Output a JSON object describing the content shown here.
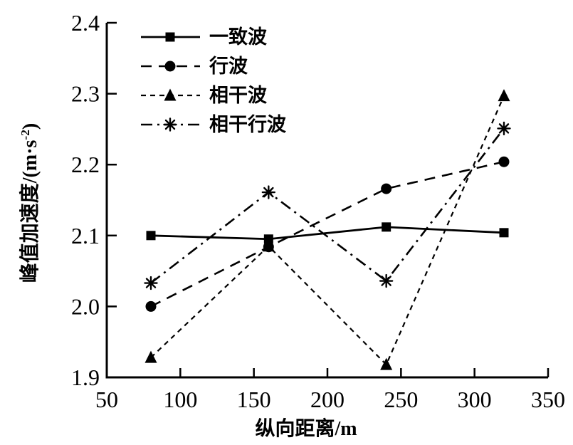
{
  "figure": {
    "background_color": "#ffffff",
    "ink_color": "#000000"
  },
  "chart_data": {
    "type": "line",
    "title": "",
    "xlabel": "纵向距离/m",
    "ylabel": "峰值加速度/(m·s⁻²)",
    "ylabel_parts": {
      "prefix": "峰值加速度/(m·s",
      "sup": "-2",
      "suffix": ")"
    },
    "xlim": [
      50,
      350
    ],
    "ylim": [
      1.9,
      2.4
    ],
    "x_ticks": [
      50,
      100,
      150,
      200,
      250,
      300,
      350
    ],
    "x_tick_labels": [
      "50",
      "100",
      "150",
      "200",
      "250",
      "300",
      "350"
    ],
    "y_ticks": [
      1.9,
      2.0,
      2.1,
      2.2,
      2.3,
      2.4
    ],
    "y_tick_labels": [
      "1.9",
      "2.0",
      "2.1",
      "2.2",
      "2.3",
      "2.4"
    ],
    "grid": false,
    "legend_position": "top-left inside",
    "x": [
      80,
      160,
      240,
      320
    ],
    "series": [
      {
        "name": "一致波",
        "marker": "square",
        "line_style": "solid",
        "values": [
          2.1,
          2.095,
          2.112,
          2.104
        ]
      },
      {
        "name": "行波",
        "marker": "circle",
        "line_style": "long-dash",
        "values": [
          2.0,
          2.084,
          2.166,
          2.204
        ]
      },
      {
        "name": "相干波",
        "marker": "triangle",
        "line_style": "short-dash",
        "values": [
          1.928,
          2.085,
          1.918,
          2.297
        ]
      },
      {
        "name": "相干行波",
        "marker": "asterisk",
        "line_style": "dash-dot",
        "values": [
          2.033,
          2.161,
          2.036,
          2.251
        ]
      }
    ]
  }
}
